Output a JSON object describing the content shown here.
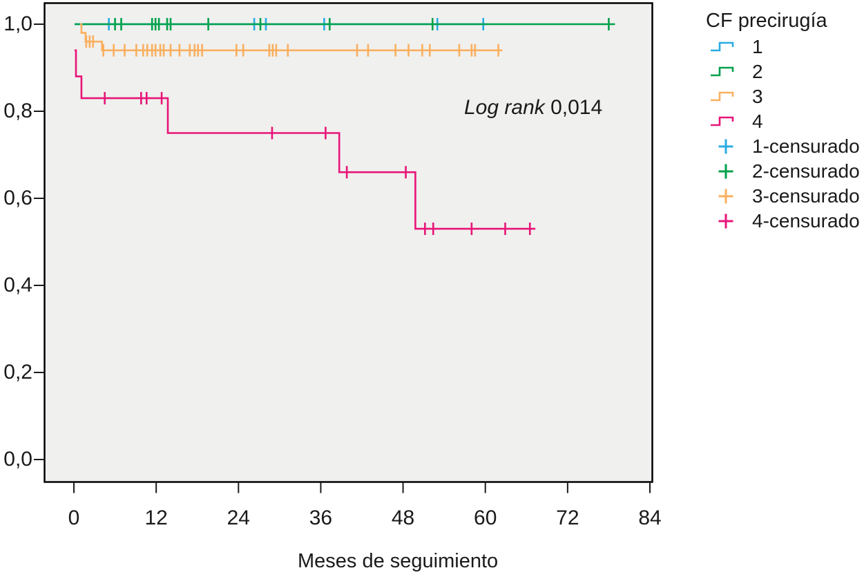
{
  "figure": {
    "log_rank": {
      "prefix": "Log rank",
      "value": " 0,014"
    }
  },
  "legend": {
    "title": "CF precirugía",
    "line_labels": [
      "1",
      "2",
      "3",
      "4"
    ],
    "censored_labels": [
      "1-censurado",
      "2-censurado",
      "3-censurado",
      "4-censurado"
    ]
  },
  "chart_data": {
    "type": "line",
    "variant": "kaplan-meier-step",
    "title": "",
    "xlabel": "Meses de seguimiento",
    "ylabel": "",
    "xlim": [
      0,
      84
    ],
    "ylim": [
      0.0,
      1.0
    ],
    "grid": false,
    "legend_position": "right",
    "plot_background": "#F0F0EE",
    "annotation": "Log rank 0,014",
    "x_ticks": [
      0,
      12,
      24,
      36,
      48,
      60,
      72,
      84
    ],
    "y_ticks": [
      {
        "value": 1.0,
        "label": "1,0"
      },
      {
        "value": 0.8,
        "label": "0,8"
      },
      {
        "value": 0.6,
        "label": "0,6"
      },
      {
        "value": 0.4,
        "label": "0,4"
      },
      {
        "value": 0.2,
        "label": "0,2"
      },
      {
        "value": 0.0,
        "label": "0,0"
      }
    ],
    "series": [
      {
        "name": "1",
        "color": "#29ABE2",
        "steps": [
          [
            0.1,
            1.0
          ],
          [
            60.2,
            1.0
          ]
        ],
        "censored": [
          5.1,
          26.3,
          28.0,
          36.5,
          53.0,
          59.7
        ]
      },
      {
        "name": "2",
        "color": "#00A14B",
        "steps": [
          [
            0.1,
            1.0
          ],
          [
            78.9,
            1.0
          ]
        ],
        "censored": [
          6.0,
          6.9,
          11.4,
          11.9,
          12.4,
          13.6,
          14.1,
          19.6,
          27.2,
          37.3,
          52.3,
          78.0
        ]
      },
      {
        "name": "3",
        "color": "#FAAF5F",
        "steps": [
          [
            0.9,
            1.0
          ],
          [
            1.1,
            1.0
          ],
          [
            1.1,
            0.98
          ],
          [
            1.7,
            0.98
          ],
          [
            1.7,
            0.96
          ],
          [
            4.1,
            0.96
          ],
          [
            4.1,
            0.94
          ],
          [
            62.5,
            0.94
          ]
        ],
        "censored": [
          1.8,
          2.3,
          2.8,
          4.3,
          5.8,
          7.4,
          9.1,
          10.1,
          10.7,
          11.4,
          11.9,
          12.6,
          13.1,
          14.1,
          15.4,
          16.9,
          17.6,
          18.1,
          18.7,
          23.7,
          24.7,
          28.5,
          29.0,
          29.5,
          31.2,
          41.3,
          42.9,
          46.9,
          48.8,
          50.8,
          51.9,
          56.2,
          58.0,
          58.5,
          61.9
        ]
      },
      {
        "name": "4",
        "color": "#E81478",
        "steps": [
          [
            0.1,
            0.94
          ],
          [
            0.3,
            0.94
          ],
          [
            0.3,
            0.88
          ],
          [
            1.1,
            0.88
          ],
          [
            1.1,
            0.83
          ],
          [
            13.7,
            0.83
          ],
          [
            13.7,
            0.75
          ],
          [
            38.7,
            0.75
          ],
          [
            38.7,
            0.66
          ],
          [
            49.8,
            0.66
          ],
          [
            49.8,
            0.53
          ],
          [
            67.3,
            0.53
          ]
        ],
        "censored": [
          4.5,
          9.8,
          10.6,
          12.8,
          28.9,
          36.7,
          39.8,
          48.4,
          51.2,
          52.4,
          58.0,
          62.9,
          66.5
        ]
      }
    ]
  }
}
